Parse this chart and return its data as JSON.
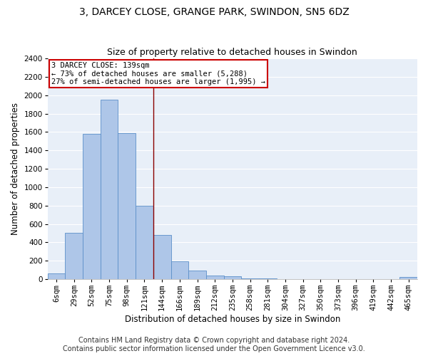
{
  "title1": "3, DARCEY CLOSE, GRANGE PARK, SWINDON, SN5 6DZ",
  "title2": "Size of property relative to detached houses in Swindon",
  "xlabel": "Distribution of detached houses by size in Swindon",
  "ylabel": "Number of detached properties",
  "categories": [
    "6sqm",
    "29sqm",
    "52sqm",
    "75sqm",
    "98sqm",
    "121sqm",
    "144sqm",
    "166sqm",
    "189sqm",
    "212sqm",
    "235sqm",
    "258sqm",
    "281sqm",
    "304sqm",
    "327sqm",
    "350sqm",
    "373sqm",
    "396sqm",
    "419sqm",
    "442sqm",
    "465sqm"
  ],
  "values": [
    60,
    500,
    1580,
    1950,
    1590,
    800,
    480,
    195,
    90,
    35,
    28,
    5,
    5,
    0,
    0,
    0,
    0,
    0,
    0,
    0,
    20
  ],
  "bar_color": "#aec6e8",
  "bar_edge_color": "#5b8fc9",
  "vline_x_index": 5,
  "vline_color": "#8b0000",
  "annotation_line1": "3 DARCEY CLOSE: 139sqm",
  "annotation_line2": "← 73% of detached houses are smaller (5,288)",
  "annotation_line3": "27% of semi-detached houses are larger (1,995) →",
  "annotation_box_color": "#ffffff",
  "annotation_box_edge_color": "#cc0000",
  "ylim": [
    0,
    2400
  ],
  "yticks": [
    0,
    200,
    400,
    600,
    800,
    1000,
    1200,
    1400,
    1600,
    1800,
    2000,
    2200,
    2400
  ],
  "bg_color": "#e8eff8",
  "grid_color": "#ffffff",
  "footer1": "Contains HM Land Registry data © Crown copyright and database right 2024.",
  "footer2": "Contains public sector information licensed under the Open Government Licence v3.0.",
  "title_fontsize": 10,
  "subtitle_fontsize": 9,
  "axis_label_fontsize": 8.5,
  "tick_fontsize": 7.5,
  "footer_fontsize": 7
}
